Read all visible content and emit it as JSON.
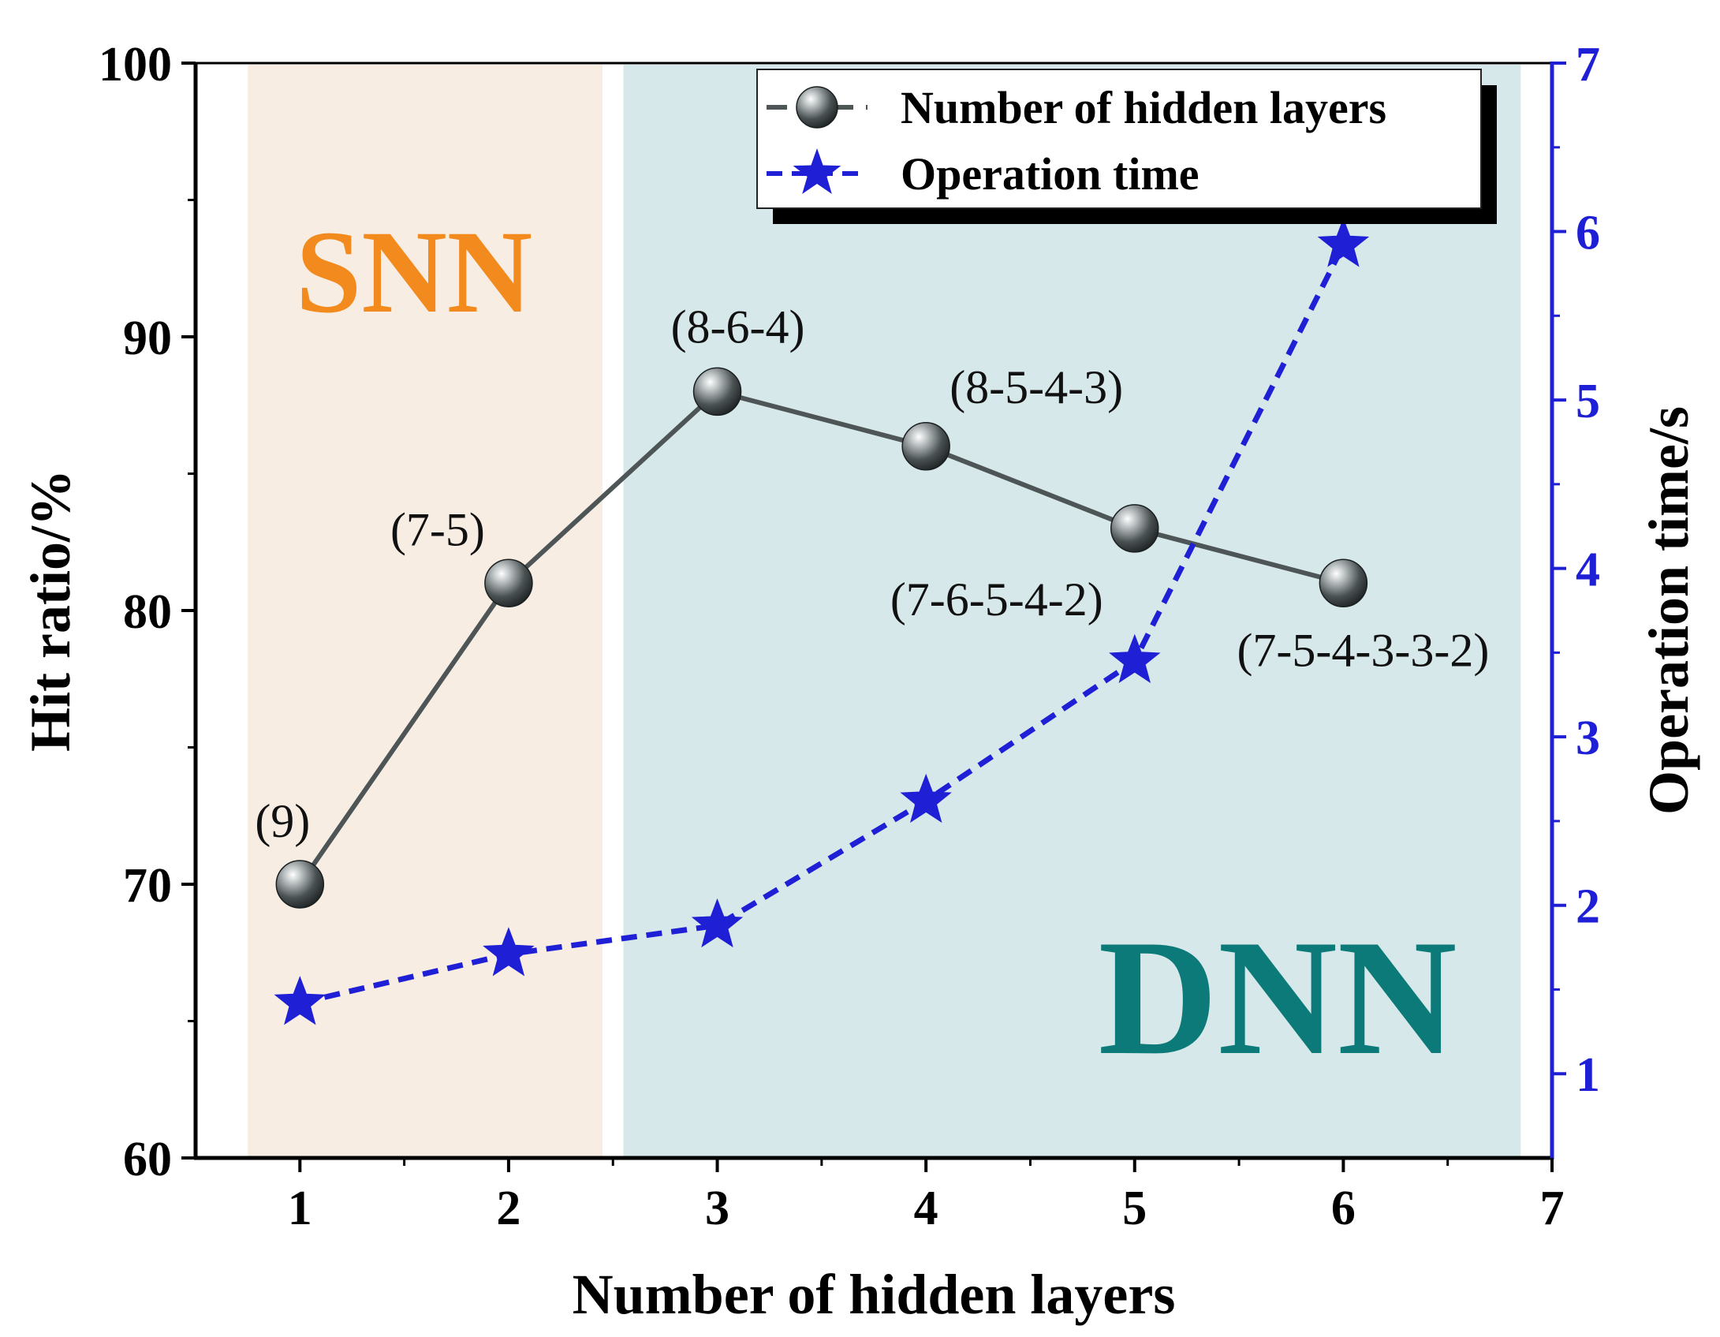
{
  "chart_data": {
    "type": "line",
    "xlabel": "Number of hidden layers",
    "ylabel_left": "Hit ratio/%",
    "ylabel_right": "Operation time/s",
    "xlim": [
      0.5,
      7
    ],
    "ylim_left": [
      60,
      100
    ],
    "ylim_right": [
      0.5,
      7
    ],
    "x_ticks": [
      1,
      2,
      3,
      4,
      5,
      6,
      7
    ],
    "y_left_ticks": [
      60,
      70,
      80,
      90,
      100
    ],
    "y_right_ticks": [
      1,
      2,
      3,
      4,
      5,
      6,
      7
    ],
    "legend_position": "top-right",
    "regions": [
      {
        "label": "SNN",
        "x_range": [
          0.75,
          2.45
        ],
        "color": "#f8ede3",
        "label_color": "#f28a1e"
      },
      {
        "label": "DNN",
        "x_range": [
          2.55,
          6.85
        ],
        "color": "#d7e8ea",
        "label_color": "#0b7a78"
      }
    ],
    "series": [
      {
        "name": "Number of hidden layers",
        "axis": "left",
        "color": "#4d5556",
        "marker": "sphere",
        "x": [
          1,
          2,
          3,
          4,
          5,
          6
        ],
        "values": [
          70,
          81,
          88,
          86,
          83,
          81
        ],
        "point_labels": [
          "(9)",
          "(7-5)",
          "(8-6-4)",
          "(8-5-4-3)",
          "(7-6-5-4-2)",
          "(7-5-4-3-3-2)"
        ]
      },
      {
        "name": "Operation time",
        "axis": "right",
        "color": "#1f1fd6",
        "marker": "star",
        "dashed": true,
        "x": [
          1,
          2,
          3,
          4,
          5,
          6
        ],
        "values": [
          1.42,
          1.71,
          1.88,
          2.62,
          3.45,
          5.92
        ]
      }
    ]
  }
}
